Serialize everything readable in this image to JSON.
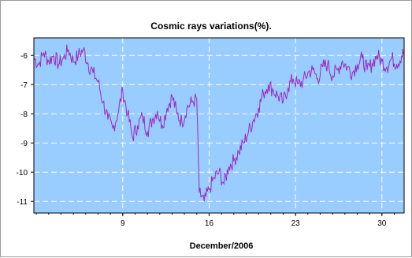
{
  "chart_data": {
    "type": "line",
    "title": "Cosmic rays variations(%).",
    "xlabel": "December/2006",
    "ylabel": "",
    "xlim": [
      1.8,
      31.8
    ],
    "ylim": [
      -11.4,
      -5.4
    ],
    "x_ticks": [
      9,
      16,
      23,
      30
    ],
    "x_tick_labels": [
      "9",
      "16",
      "23",
      "30"
    ],
    "y_ticks": [
      -6,
      -7,
      -8,
      -9,
      -10,
      -11
    ],
    "y_tick_labels": [
      "-6",
      "-7",
      "-8",
      "-9",
      "-10",
      "-11"
    ],
    "grid": true,
    "plot_background": "#99ccff",
    "series": [
      {
        "color": "#9a2bbf",
        "x": [
          1.8,
          2.2,
          2.6,
          3.0,
          3.4,
          3.8,
          4.2,
          4.6,
          5.0,
          5.4,
          5.8,
          6.2,
          6.6,
          7.0,
          7.4,
          7.8,
          8.2,
          8.6,
          9.0,
          9.4,
          9.8,
          10.2,
          10.6,
          11.0,
          11.4,
          11.8,
          12.2,
          12.6,
          13.0,
          13.4,
          13.8,
          14.2,
          14.6,
          15.0,
          15.2,
          15.6,
          16.0,
          16.4,
          16.8,
          17.2,
          17.6,
          18.0,
          18.4,
          18.8,
          19.2,
          19.6,
          20.0,
          20.4,
          20.8,
          21.2,
          21.6,
          22.0,
          22.4,
          22.8,
          23.2,
          23.6,
          24.0,
          24.4,
          24.8,
          25.2,
          25.6,
          26.0,
          26.4,
          26.8,
          27.2,
          27.6,
          28.0,
          28.4,
          28.8,
          29.2,
          29.6,
          30.0,
          30.4,
          30.8,
          31.2,
          31.6,
          31.8
        ],
        "y": [
          -6.1,
          -6.3,
          -5.9,
          -6.2,
          -6.0,
          -6.3,
          -6.1,
          -5.8,
          -6.2,
          -6.0,
          -5.8,
          -6.3,
          -6.6,
          -6.9,
          -7.6,
          -8.2,
          -8.5,
          -8.0,
          -7.2,
          -8.0,
          -8.8,
          -8.4,
          -8.1,
          -8.6,
          -8.2,
          -7.9,
          -8.4,
          -7.8,
          -7.4,
          -8.0,
          -8.3,
          -7.8,
          -7.6,
          -7.5,
          -10.7,
          -11.0,
          -10.6,
          -10.2,
          -10.0,
          -10.4,
          -9.8,
          -9.6,
          -9.3,
          -9.0,
          -8.6,
          -8.2,
          -7.8,
          -7.3,
          -7.0,
          -7.2,
          -7.4,
          -7.6,
          -7.1,
          -6.8,
          -7.0,
          -6.9,
          -6.6,
          -6.5,
          -6.8,
          -6.4,
          -6.3,
          -6.7,
          -6.5,
          -6.2,
          -6.4,
          -6.6,
          -6.3,
          -6.1,
          -6.5,
          -6.3,
          -6.0,
          -6.2,
          -6.4,
          -6.1,
          -6.3,
          -6.0,
          -5.9
        ]
      }
    ]
  }
}
